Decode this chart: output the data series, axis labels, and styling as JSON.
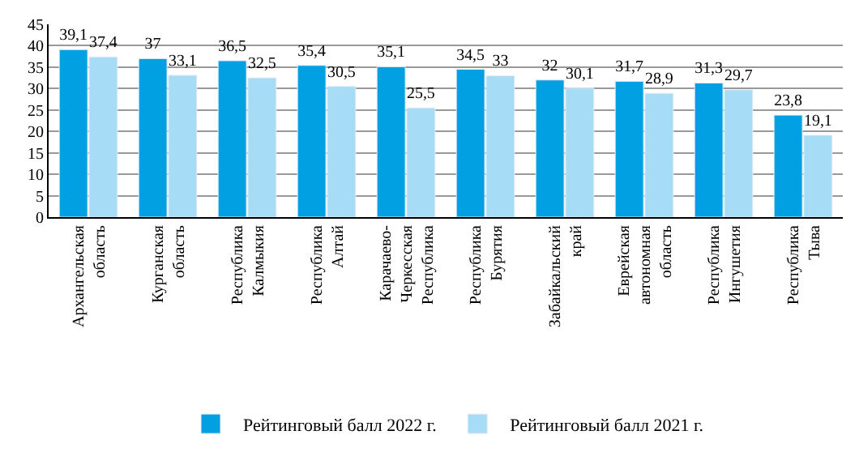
{
  "chart_data": {
    "type": "bar",
    "categories": [
      "Архангельская\nобласть",
      "Курганская\nобласть",
      "Республика\nКалмыкия",
      "Республика\nАлтай",
      "Карачаево-\nЧеркесская\nРеспублика",
      "Республика\nБурятия",
      "Забайкальский\nкрай",
      "Еврейская\nавтономная\nобласть",
      "Республика\nИнгушетия",
      "Республика\nТыва"
    ],
    "series": [
      {
        "name": "Рейтинговый балл 2022 г.",
        "color": "#00a0e3",
        "values": [
          39.1,
          37,
          36.5,
          35.4,
          35.1,
          34.5,
          32,
          31.7,
          31.3,
          23.8
        ],
        "value_labels": [
          "39,1",
          "37",
          "36,5",
          "35,4",
          "35,1",
          "34,5",
          "32",
          "31,7",
          "31,3",
          "23,8"
        ]
      },
      {
        "name": "Рейтинговый балл 2021 г.",
        "color": "#a6dcf5",
        "values": [
          37.4,
          33.1,
          32.5,
          30.5,
          25.5,
          33,
          30.1,
          28.9,
          29.7,
          19.1
        ],
        "value_labels": [
          "37,4",
          "33,1",
          "32,5",
          "30,5",
          "25,5",
          "33",
          "30,1",
          "28,9",
          "29,7",
          "19,1"
        ]
      }
    ],
    "ylim": [
      0,
      45
    ],
    "yticks": [
      0,
      5,
      10,
      15,
      20,
      25,
      30,
      35,
      40,
      45
    ],
    "grid": "y",
    "legend": "bottom"
  }
}
